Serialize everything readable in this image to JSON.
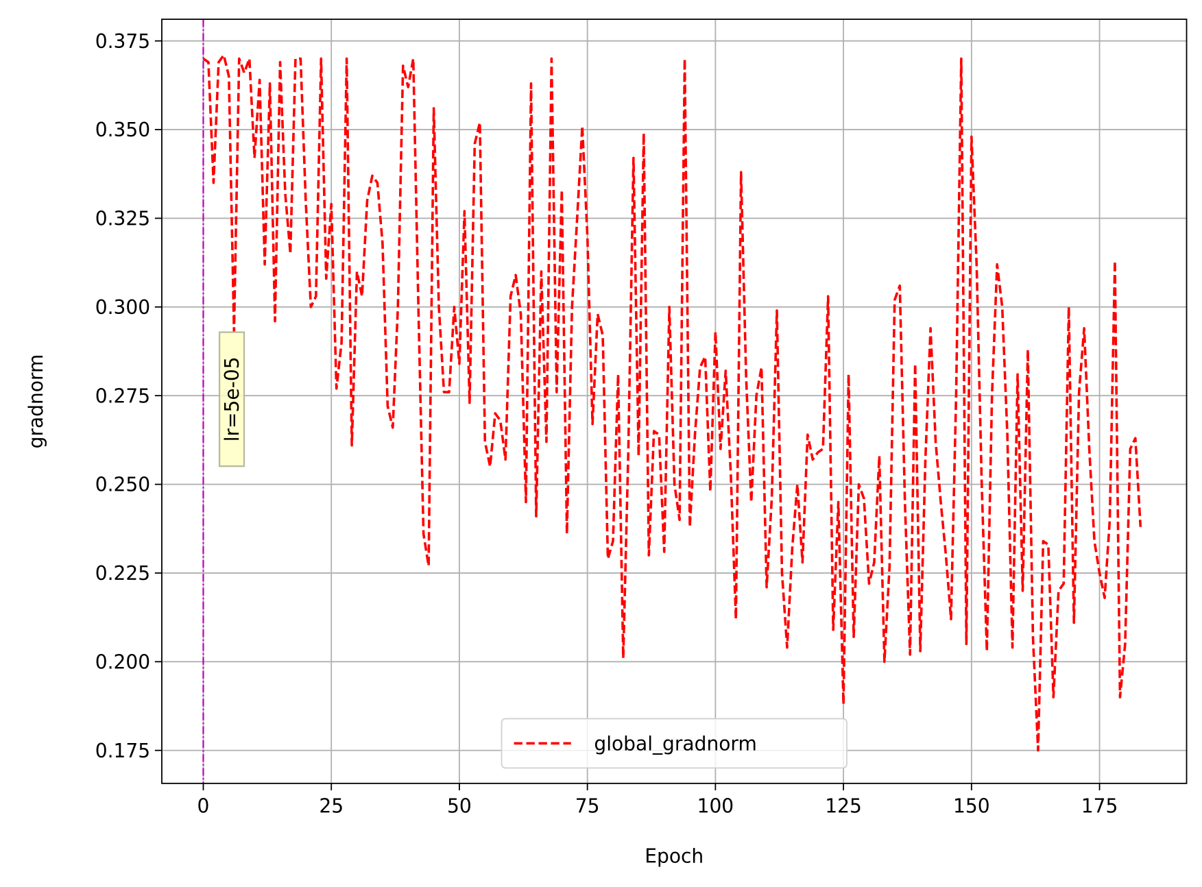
{
  "chart_data": {
    "type": "line",
    "xlabel": "Epoch",
    "ylabel": "gradnorm",
    "xlim": [
      -8.1,
      192
    ],
    "ylim": [
      0.1657,
      0.3811
    ],
    "xticks": [
      0,
      25,
      50,
      75,
      100,
      125,
      150,
      175
    ],
    "yticks": [
      0.175,
      {
        "value": 0.2,
        "label": "0.200"
      },
      0.225,
      {
        "value": 0.25,
        "label": "0.250"
      },
      0.275,
      {
        "value": 0.3,
        "label": "0.300"
      },
      0.325,
      {
        "value": 0.35,
        "label": "0.350"
      },
      0.375
    ],
    "grid": true,
    "legend": "lower center",
    "vline_x": 0,
    "vline_color": "#bf00bf",
    "annotation": "lr=5e-05",
    "x": [
      0,
      1,
      2,
      3,
      4,
      5,
      6,
      7,
      8,
      9,
      10,
      11,
      12,
      13,
      14,
      15,
      16,
      17,
      18,
      19,
      20,
      21,
      22,
      23,
      24,
      25,
      26,
      27,
      28,
      29,
      30,
      31,
      32,
      33,
      34,
      35,
      36,
      37,
      38,
      39,
      40,
      41,
      42,
      43,
      44,
      45,
      46,
      47,
      48,
      49,
      50,
      51,
      52,
      53,
      54,
      55,
      56,
      57,
      58,
      59,
      60,
      61,
      62,
      63,
      64,
      65,
      66,
      67,
      68,
      69,
      70,
      71,
      72,
      73,
      74,
      75,
      76,
      77,
      78,
      79,
      80,
      81,
      82,
      83,
      84,
      85,
      86,
      87,
      88,
      89,
      90,
      91,
      92,
      93,
      94,
      95,
      96,
      97,
      98,
      99,
      100,
      101,
      102,
      103,
      104,
      105,
      106,
      107,
      108,
      109,
      110,
      111,
      112,
      113,
      114,
      115,
      116,
      117,
      118,
      119,
      120,
      121,
      122,
      123,
      124,
      125,
      126,
      127,
      128,
      129,
      130,
      131,
      132,
      133,
      134,
      135,
      136,
      137,
      138,
      139,
      140,
      141,
      142,
      143,
      144,
      145,
      146,
      147,
      148,
      149,
      150,
      151,
      152,
      153,
      154,
      155,
      156,
      157,
      158,
      159,
      160,
      161,
      162,
      163,
      164,
      165,
      166,
      167,
      168,
      169,
      170,
      171,
      172,
      173,
      174,
      175,
      176,
      177,
      178,
      179,
      180,
      181,
      182,
      183
    ],
    "series": [
      {
        "name": "global_gradnorm",
        "color": "#ff0000",
        "values": [
          0.37,
          0.369,
          0.335,
          0.369,
          0.371,
          0.365,
          0.293,
          0.37,
          0.366,
          0.37,
          0.342,
          0.364,
          0.312,
          0.363,
          0.296,
          0.369,
          0.332,
          0.315,
          0.37,
          0.37,
          0.33,
          0.3,
          0.303,
          0.37,
          0.308,
          0.329,
          0.277,
          0.29,
          0.37,
          0.261,
          0.31,
          0.303,
          0.33,
          0.337,
          0.335,
          0.318,
          0.272,
          0.266,
          0.3,
          0.368,
          0.362,
          0.37,
          0.3,
          0.236,
          0.227,
          0.356,
          0.3,
          0.276,
          0.276,
          0.3,
          0.284,
          0.327,
          0.273,
          0.346,
          0.352,
          0.262,
          0.255,
          0.27,
          0.268,
          0.257,
          0.303,
          0.309,
          0.298,
          0.245,
          0.363,
          0.241,
          0.31,
          0.262,
          0.37,
          0.276,
          0.333,
          0.236,
          0.3,
          0.325,
          0.351,
          0.32,
          0.267,
          0.298,
          0.292,
          0.229,
          0.234,
          0.281,
          0.201,
          0.26,
          0.342,
          0.258,
          0.349,
          0.23,
          0.265,
          0.264,
          0.231,
          0.3,
          0.25,
          0.24,
          0.37,
          0.238,
          0.264,
          0.283,
          0.286,
          0.248,
          0.293,
          0.26,
          0.282,
          0.253,
          0.212,
          0.338,
          0.28,
          0.245,
          0.275,
          0.283,
          0.221,
          0.246,
          0.299,
          0.225,
          0.204,
          0.232,
          0.25,
          0.228,
          0.264,
          0.257,
          0.259,
          0.26,
          0.303,
          0.209,
          0.245,
          0.188,
          0.281,
          0.207,
          0.25,
          0.246,
          0.222,
          0.228,
          0.258,
          0.2,
          0.227,
          0.302,
          0.306,
          0.245,
          0.202,
          0.284,
          0.203,
          0.257,
          0.294,
          0.262,
          0.245,
          0.23,
          0.212,
          0.275,
          0.37,
          0.205,
          0.348,
          0.312,
          0.25,
          0.203,
          0.275,
          0.312,
          0.3,
          0.264,
          0.204,
          0.281,
          0.22,
          0.288,
          0.207,
          0.175,
          0.234,
          0.233,
          0.19,
          0.22,
          0.222,
          0.3,
          0.211,
          0.276,
          0.294,
          0.26,
          0.234,
          0.225,
          0.218,
          0.24,
          0.313,
          0.19,
          0.205,
          0.26,
          0.263,
          0.238
        ]
      }
    ]
  }
}
